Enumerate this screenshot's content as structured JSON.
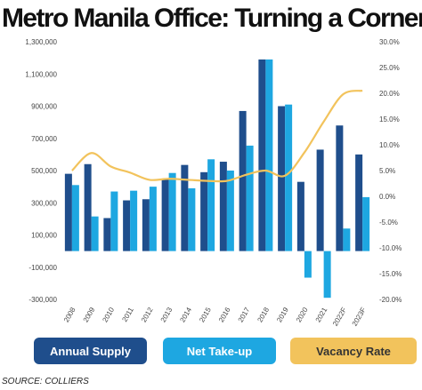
{
  "source": "SOURCE: COLLIERS",
  "colors": {
    "supply": "#1f4e8c",
    "takeup": "#1ea7e1",
    "vacancy": "#f2c35c"
  },
  "chart_data": {
    "type": "bar",
    "title": "Metro Manila Office: Turning a Corner",
    "categories": [
      "2008",
      "2009",
      "2010",
      "2011",
      "2012",
      "2013",
      "2014",
      "2015",
      "2016",
      "2017",
      "2018",
      "2019",
      "2020",
      "2021",
      "2022F",
      "2023F"
    ],
    "series": [
      {
        "name": "Annual Supply",
        "type": "bar",
        "axis": "left",
        "values": [
          480000,
          540000,
          205000,
          315000,
          322000,
          450000,
          535000,
          490000,
          555000,
          870000,
          1190000,
          900000,
          430000,
          630000,
          780000,
          600000
        ]
      },
      {
        "name": "Net Take-up",
        "type": "bar",
        "axis": "left",
        "values": [
          410000,
          215000,
          370000,
          375000,
          400000,
          485000,
          390000,
          570000,
          500000,
          655000,
          1190000,
          910000,
          -165000,
          -290000,
          140000,
          335000
        ]
      },
      {
        "name": "Vacancy Rate",
        "type": "line",
        "axis": "right",
        "values": [
          5.0,
          8.4,
          5.8,
          4.6,
          3.2,
          3.4,
          3.2,
          3.0,
          3.0,
          4.2,
          5.0,
          4.0,
          8.5,
          14.5,
          19.8,
          20.5
        ]
      }
    ],
    "y_left": {
      "min": -300000,
      "max": 1300000,
      "ticks": [
        -300000,
        -100000,
        100000,
        300000,
        500000,
        700000,
        900000,
        1100000,
        1300000
      ],
      "tick_labels": [
        "-300,000",
        "-100,000",
        "100,000",
        "300,000",
        "500,000",
        "700,000",
        "900,000",
        "1,100,000",
        "1,300,000"
      ]
    },
    "y_right": {
      "min": -20,
      "max": 30,
      "ticks": [
        30,
        25,
        20,
        15,
        10,
        5,
        0,
        -5,
        -10,
        -15,
        -20
      ],
      "tick_labels": [
        "30.0%",
        "25.0%",
        "20.0%",
        "15.0%",
        "10.0%",
        "5.0%",
        "0.0%",
        "-5.0%",
        "-10.0%",
        "-15.0%",
        "-20.0%"
      ]
    },
    "legend": {
      "placement": "bottom",
      "entries": [
        "Annual Supply",
        "Net Take-up",
        "Vacancy Rate"
      ]
    },
    "grid": false
  }
}
